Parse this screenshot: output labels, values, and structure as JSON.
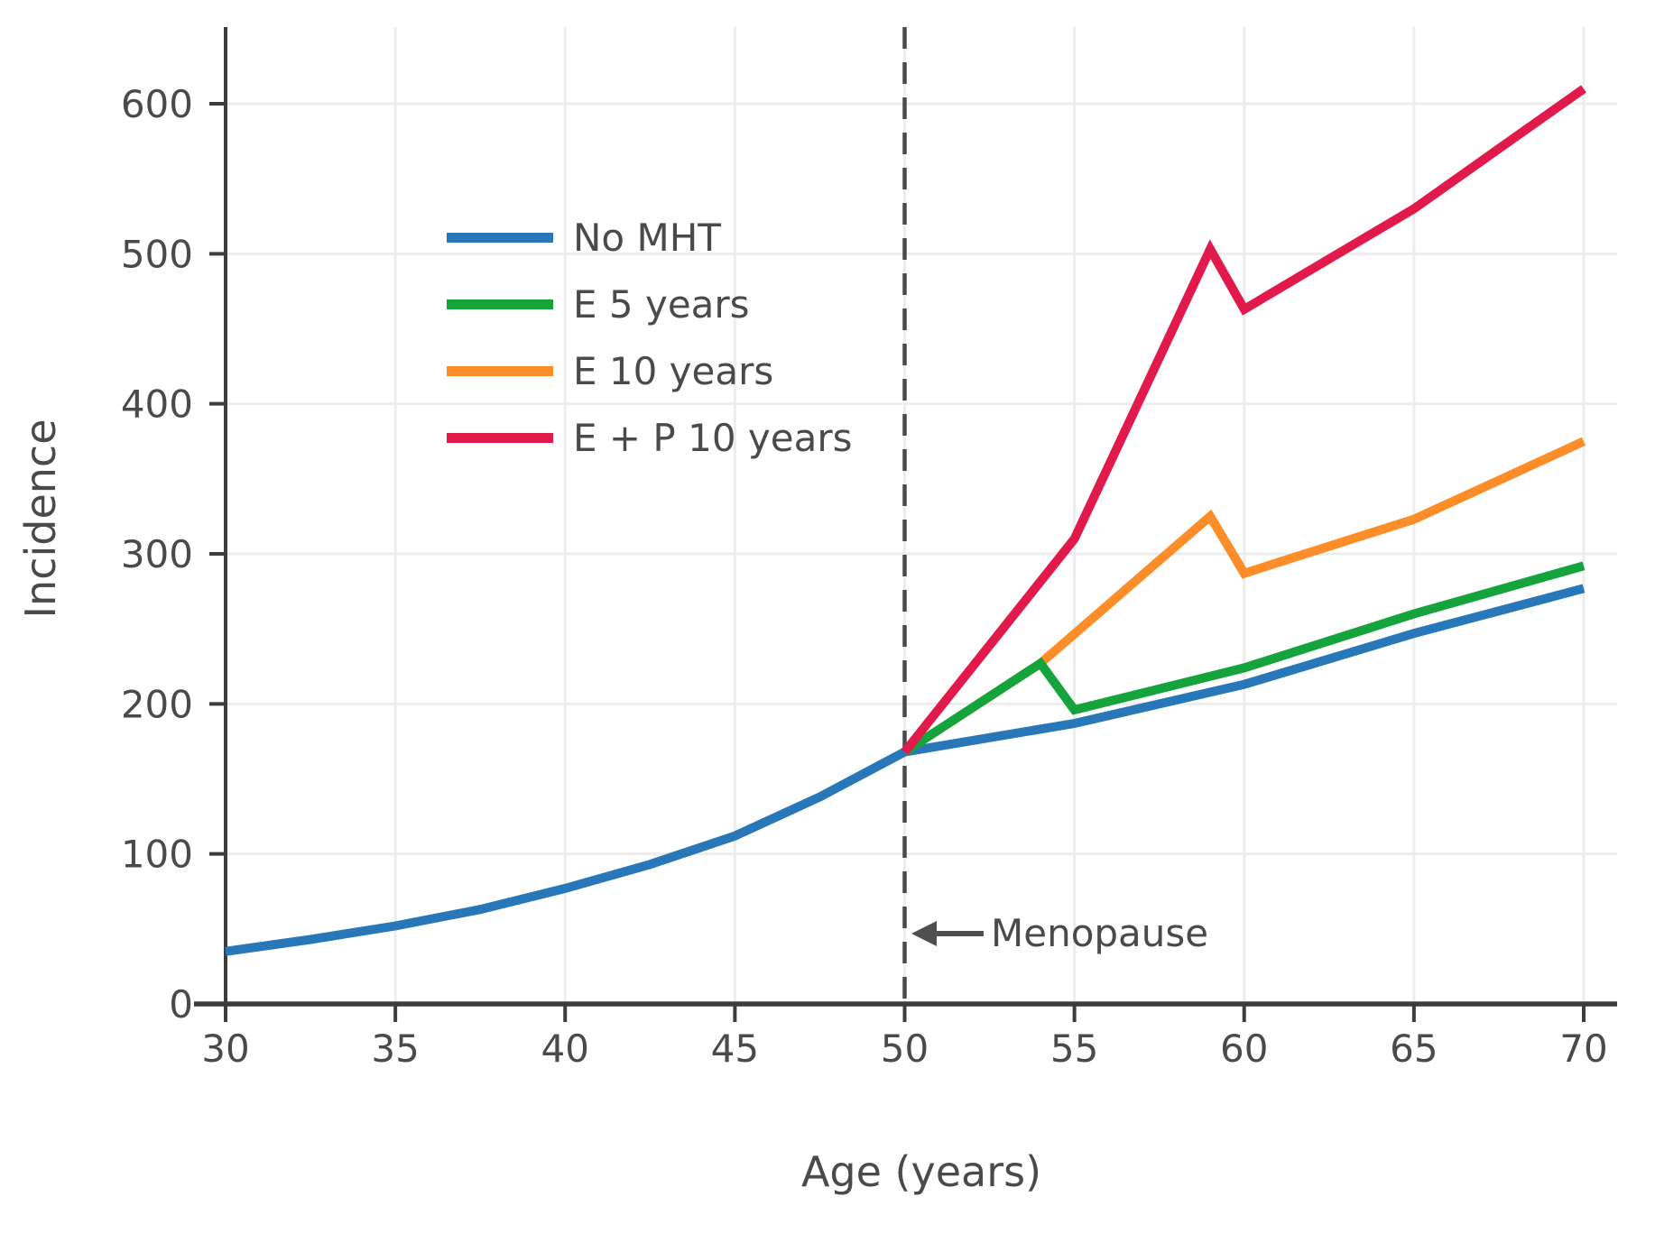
{
  "chart_data": {
    "type": "line",
    "title": "",
    "xlabel": "Age (years)",
    "ylabel": "Incidence",
    "xlim": [
      30,
      70
    ],
    "ylim": [
      0,
      600
    ],
    "x_ticks": [
      30,
      35,
      40,
      45,
      50,
      55,
      60,
      65,
      70
    ],
    "y_ticks": [
      0,
      100,
      200,
      300,
      400,
      500,
      600
    ],
    "grid": true,
    "legend_position": "upper-left-inside",
    "series": [
      {
        "name": "No MHT",
        "color": "#2878b9",
        "points": [
          [
            30,
            35
          ],
          [
            32.5,
            43
          ],
          [
            35,
            52
          ],
          [
            37.5,
            63
          ],
          [
            40,
            77
          ],
          [
            42.5,
            93
          ],
          [
            45,
            112
          ],
          [
            47.5,
            138
          ],
          [
            50,
            168
          ],
          [
            55,
            187
          ],
          [
            60,
            213
          ],
          [
            65,
            247
          ],
          [
            70,
            277
          ]
        ]
      },
      {
        "name": "E 5 years",
        "color": "#15a43c",
        "points": [
          [
            50,
            168
          ],
          [
            54,
            227
          ],
          [
            55,
            196
          ],
          [
            60,
            224
          ],
          [
            65,
            260
          ],
          [
            70,
            292
          ]
        ]
      },
      {
        "name": "E 10 years",
        "color": "#fc8d28",
        "points": [
          [
            50,
            168
          ],
          [
            54,
            227
          ],
          [
            59,
            325
          ],
          [
            60,
            287
          ],
          [
            65,
            323
          ],
          [
            70,
            375
          ]
        ]
      },
      {
        "name": "E + P 10 years",
        "color": "#e21a4c",
        "points": [
          [
            50,
            168
          ],
          [
            55,
            310
          ],
          [
            59,
            503
          ],
          [
            60,
            463
          ],
          [
            65,
            530
          ],
          [
            70,
            610
          ]
        ]
      }
    ],
    "annotations": [
      {
        "label": "Menopause",
        "type": "vline-arrow",
        "x": 50
      }
    ],
    "colors": {
      "grid": "#ededed",
      "axis": "#3d3d3d",
      "tick_label": "#4a4a4a",
      "dashed_line": "#4a4a4a",
      "annotation_text": "#4a4a4a"
    }
  }
}
